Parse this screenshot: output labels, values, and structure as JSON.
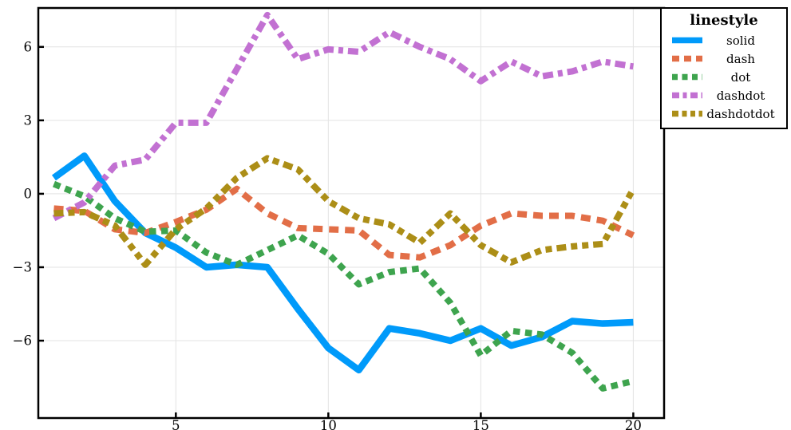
{
  "chart_data": {
    "type": "line",
    "title": "",
    "x": [
      1,
      2,
      3,
      4,
      5,
      6,
      7,
      8,
      9,
      10,
      11,
      12,
      13,
      14,
      15,
      16,
      17,
      18,
      19,
      20
    ],
    "series": [
      {
        "name": "solid",
        "linestyle": "solid",
        "color": "#009AFA",
        "values": [
          0.65,
          1.55,
          -0.3,
          -1.6,
          -2.2,
          -3.0,
          -2.9,
          -3.0,
          -4.7,
          -6.3,
          -7.2,
          -5.5,
          -5.7,
          -6.0,
          -5.5,
          -6.2,
          -5.85,
          -5.2,
          -5.3,
          -5.25
        ]
      },
      {
        "name": "dash",
        "linestyle": "dash",
        "color": "#E26E47",
        "values": [
          -0.6,
          -0.7,
          -1.45,
          -1.6,
          -1.15,
          -0.65,
          0.2,
          -0.8,
          -1.4,
          -1.45,
          -1.5,
          -2.5,
          -2.6,
          -2.1,
          -1.3,
          -0.8,
          -0.9,
          -0.9,
          -1.1,
          -1.7
        ]
      },
      {
        "name": "dot",
        "linestyle": "dot",
        "color": "#3EA44E",
        "values": [
          0.4,
          -0.1,
          -1.0,
          -1.55,
          -1.5,
          -2.4,
          -2.9,
          -2.3,
          -1.7,
          -2.45,
          -3.7,
          -3.2,
          -3.05,
          -4.45,
          -6.6,
          -5.6,
          -5.75,
          -6.5,
          -7.95,
          -7.65
        ]
      },
      {
        "name": "dashdot",
        "linestyle": "dashdot",
        "color": "#C271D2",
        "values": [
          -1.0,
          -0.35,
          1.15,
          1.4,
          2.9,
          2.9,
          5.1,
          7.3,
          5.5,
          5.9,
          5.8,
          6.6,
          6.0,
          5.5,
          4.6,
          5.4,
          4.8,
          5.0,
          5.4,
          5.2
        ]
      },
      {
        "name": "dashdotdot",
        "linestyle": "dashdotdot",
        "color": "#AC8E17",
        "values": [
          -0.8,
          -0.75,
          -1.3,
          -2.9,
          -1.45,
          -0.6,
          0.65,
          1.45,
          1.0,
          -0.3,
          -1.0,
          -1.25,
          -2.0,
          -0.8,
          -2.1,
          -2.8,
          -2.3,
          -2.15,
          -2.05,
          0.2
        ]
      }
    ],
    "xticks": [
      5,
      10,
      15,
      20
    ],
    "yticks": [
      -6,
      -3,
      0,
      3,
      6
    ],
    "xlim": [
      0.49,
      21.01
    ],
    "ylim": [
      -9.16,
      7.59
    ],
    "grid": true,
    "legend": {
      "title": "linestyle",
      "position": "outer-top-right",
      "entries": [
        "solid",
        "dash",
        "dot",
        "dashdot",
        "dashdotdot"
      ]
    },
    "colors": {
      "background": "#FFFFFF",
      "grid": "#E3E3E3",
      "frame": "#000000"
    }
  }
}
